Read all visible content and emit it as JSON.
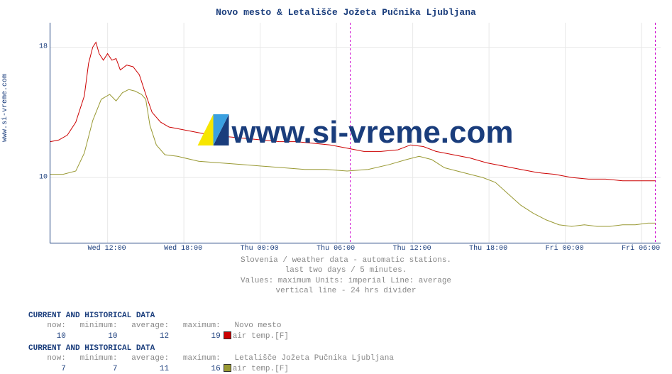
{
  "ylabel_side": "www.si-vreme.com",
  "watermark_text": "www.si-vreme.com",
  "chart": {
    "type": "line",
    "title": "Novo mesto & Letališče Jožeta Pučnika Ljubljana",
    "title_color": "#1a3d7c",
    "title_fontsize": 13,
    "background_color": "#ffffff",
    "axis_color": "#1a3d7c",
    "grid_color": "#e8e8e8",
    "divider_color": "#cc00cc",
    "divider_dash": "3,3",
    "label_fontsize": 10,
    "label_color": "#1a3d7c",
    "ylim": [
      6,
      19.5
    ],
    "yticks": [
      10,
      18
    ],
    "x_range_minutes": 2880,
    "xticks": [
      {
        "t": 270,
        "label": "Wed 12:00"
      },
      {
        "t": 630,
        "label": "Wed 18:00"
      },
      {
        "t": 990,
        "label": "Thu 00:00"
      },
      {
        "t": 1350,
        "label": "Thu 06:00"
      },
      {
        "t": 1710,
        "label": "Thu 12:00"
      },
      {
        "t": 2070,
        "label": "Thu 18:00"
      },
      {
        "t": 2430,
        "label": "Fri 00:00"
      },
      {
        "t": 2790,
        "label": "Fri 06:00"
      }
    ],
    "divider_x": 1415,
    "right_marker_x": 2855,
    "series": [
      {
        "name": "Novo mesto",
        "color": "#cc0000",
        "points": [
          [
            0,
            12.2
          ],
          [
            40,
            12.3
          ],
          [
            80,
            12.6
          ],
          [
            120,
            13.4
          ],
          [
            160,
            15.0
          ],
          [
            180,
            17.0
          ],
          [
            200,
            18.0
          ],
          [
            215,
            18.3
          ],
          [
            230,
            17.6
          ],
          [
            250,
            17.2
          ],
          [
            270,
            17.6
          ],
          [
            290,
            17.2
          ],
          [
            310,
            17.3
          ],
          [
            330,
            16.6
          ],
          [
            360,
            16.9
          ],
          [
            390,
            16.8
          ],
          [
            420,
            16.3
          ],
          [
            450,
            15.1
          ],
          [
            480,
            14.0
          ],
          [
            520,
            13.4
          ],
          [
            560,
            13.1
          ],
          [
            600,
            13.0
          ],
          [
            680,
            12.8
          ],
          [
            760,
            12.6
          ],
          [
            840,
            12.5
          ],
          [
            920,
            12.4
          ],
          [
            1000,
            12.3
          ],
          [
            1080,
            12.2
          ],
          [
            1160,
            12.2
          ],
          [
            1240,
            12.1
          ],
          [
            1320,
            12.0
          ],
          [
            1400,
            11.8
          ],
          [
            1480,
            11.6
          ],
          [
            1560,
            11.6
          ],
          [
            1640,
            11.7
          ],
          [
            1700,
            12.0
          ],
          [
            1760,
            11.9
          ],
          [
            1820,
            11.6
          ],
          [
            1900,
            11.4
          ],
          [
            1980,
            11.2
          ],
          [
            2060,
            10.9
          ],
          [
            2140,
            10.7
          ],
          [
            2220,
            10.5
          ],
          [
            2300,
            10.3
          ],
          [
            2380,
            10.2
          ],
          [
            2460,
            10.0
          ],
          [
            2540,
            9.9
          ],
          [
            2620,
            9.9
          ],
          [
            2700,
            9.8
          ],
          [
            2780,
            9.8
          ],
          [
            2855,
            9.8
          ]
        ]
      },
      {
        "name": "Letališče Jožeta Pučnika Ljubljana",
        "color": "#999933",
        "points": [
          [
            0,
            10.2
          ],
          [
            60,
            10.2
          ],
          [
            120,
            10.4
          ],
          [
            160,
            11.5
          ],
          [
            200,
            13.5
          ],
          [
            240,
            14.8
          ],
          [
            280,
            15.1
          ],
          [
            310,
            14.7
          ],
          [
            340,
            15.2
          ],
          [
            370,
            15.4
          ],
          [
            400,
            15.3
          ],
          [
            430,
            15.1
          ],
          [
            450,
            14.8
          ],
          [
            470,
            13.2
          ],
          [
            500,
            12.0
          ],
          [
            540,
            11.4
          ],
          [
            600,
            11.3
          ],
          [
            700,
            11.0
          ],
          [
            800,
            10.9
          ],
          [
            900,
            10.8
          ],
          [
            1000,
            10.7
          ],
          [
            1100,
            10.6
          ],
          [
            1200,
            10.5
          ],
          [
            1300,
            10.5
          ],
          [
            1400,
            10.4
          ],
          [
            1500,
            10.5
          ],
          [
            1600,
            10.8
          ],
          [
            1680,
            11.1
          ],
          [
            1740,
            11.3
          ],
          [
            1800,
            11.1
          ],
          [
            1860,
            10.6
          ],
          [
            1920,
            10.4
          ],
          [
            1980,
            10.2
          ],
          [
            2040,
            10.0
          ],
          [
            2100,
            9.7
          ],
          [
            2160,
            9.0
          ],
          [
            2220,
            8.3
          ],
          [
            2280,
            7.8
          ],
          [
            2340,
            7.4
          ],
          [
            2400,
            7.1
          ],
          [
            2460,
            7.0
          ],
          [
            2520,
            7.1
          ],
          [
            2580,
            7.0
          ],
          [
            2640,
            7.0
          ],
          [
            2700,
            7.1
          ],
          [
            2760,
            7.1
          ],
          [
            2820,
            7.2
          ],
          [
            2855,
            7.2
          ]
        ]
      }
    ]
  },
  "caption": {
    "line1": "Slovenia / weather data - automatic stations.",
    "line2": "last two days / 5 minutes.",
    "line3": "Values: maximum  Units: imperial  Line: average",
    "line4": "vertical line - 24 hrs  divider",
    "color": "#888888",
    "fontsize": 11
  },
  "stats_header": "CURRENT AND HISTORICAL DATA",
  "col_labels": {
    "now": "now:",
    "min": "minimum:",
    "avg": "average:",
    "max": "maximum:"
  },
  "metric_label": "air temp.[F]",
  "stats": [
    {
      "series": "Novo mesto",
      "color": "#cc0000",
      "now": "10",
      "min": "10",
      "avg": "12",
      "max": "19"
    },
    {
      "series": "Letališče Jožeta Pučnika Ljubljana",
      "color": "#999933",
      "now": "7",
      "min": "7",
      "avg": "11",
      "max": "16"
    }
  ]
}
